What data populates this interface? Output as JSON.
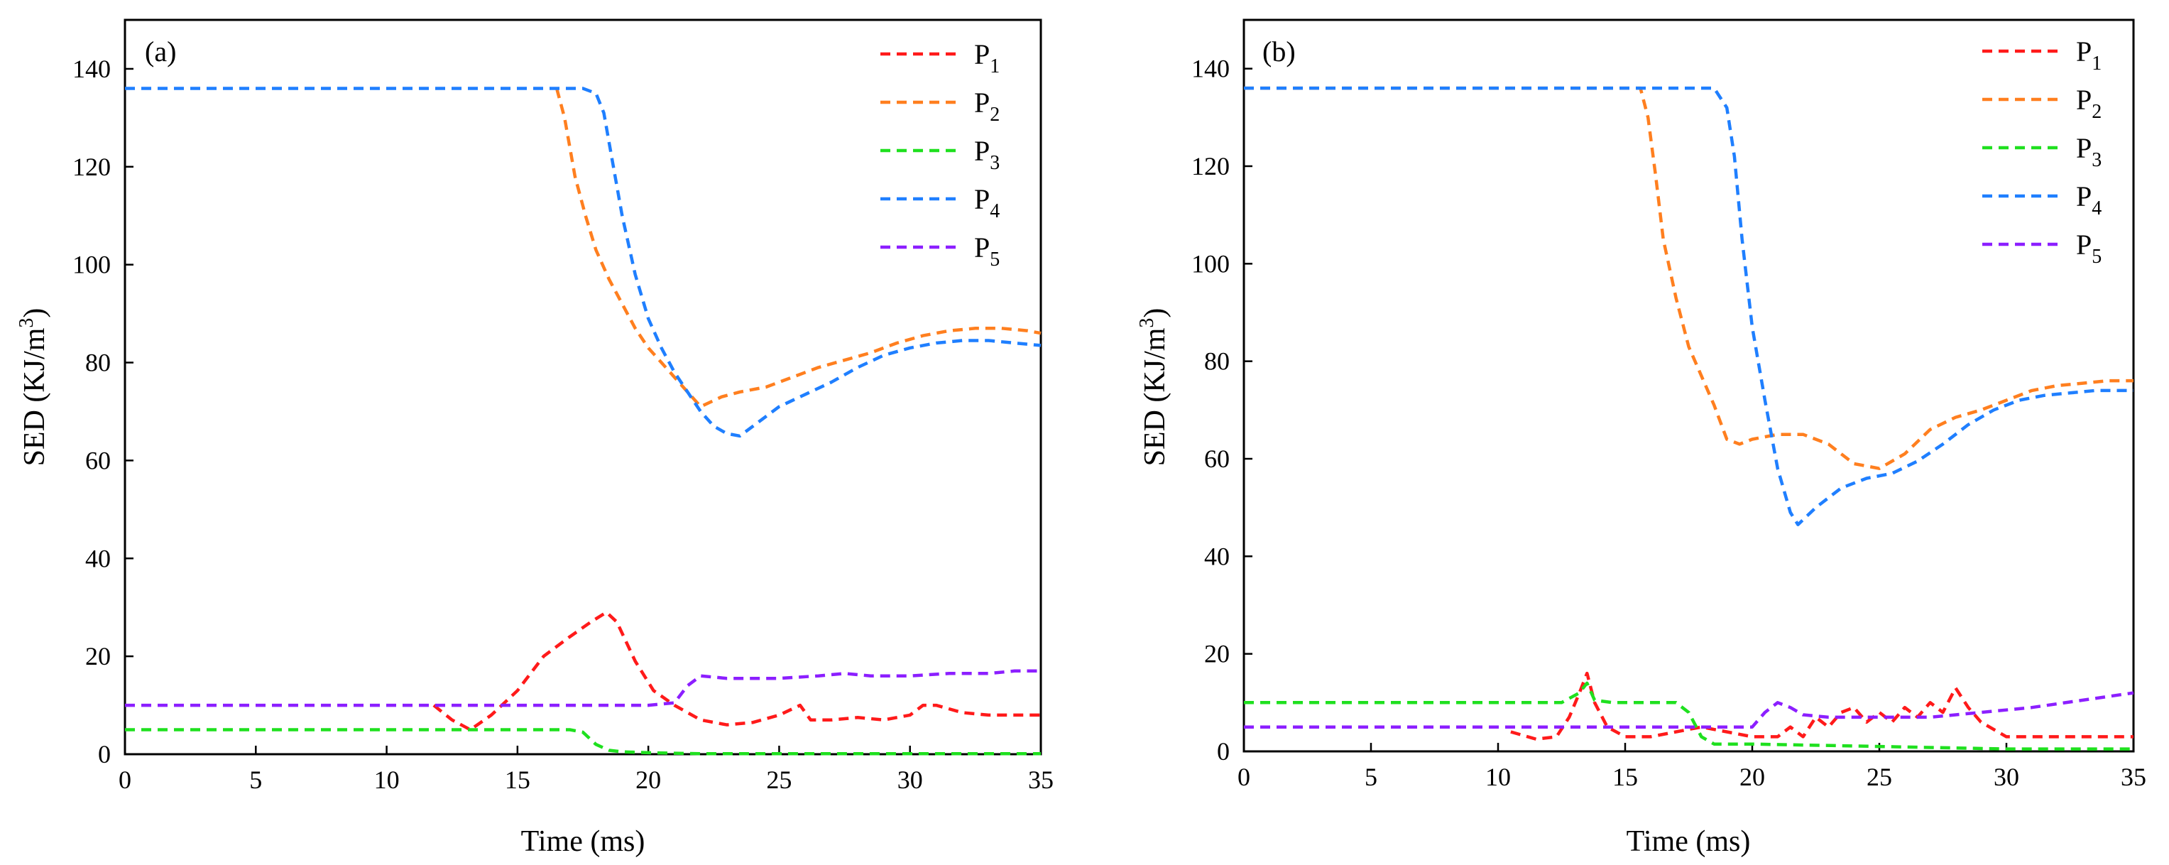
{
  "figure": {
    "panels_count": 2
  },
  "chart_data": [
    {
      "type": "line",
      "panel_label": "(a)",
      "xlabel": "Time (ms)",
      "ylabel": "SED (KJ/m",
      "ylabel_sup": "3",
      "ylabel_close": ")",
      "xlim": [
        0,
        35
      ],
      "ylim": [
        0,
        150
      ],
      "xticks": [
        0,
        5,
        10,
        15,
        20,
        25,
        30,
        35
      ],
      "yticks": [
        0,
        20,
        40,
        60,
        80,
        100,
        120,
        140
      ],
      "grid": false,
      "legend_position": "top-right",
      "line_style": "dashed",
      "series": [
        {
          "name": "P",
          "sub": "1",
          "color": "#ff1a1a",
          "x": [
            11.8,
            12.5,
            13.2,
            14.0,
            15.0,
            16.0,
            17.0,
            17.8,
            18.4,
            18.8,
            19.5,
            20.2,
            21.0,
            22.0,
            23.0,
            24.0,
            25.0,
            25.8,
            26.2,
            27.0,
            28.0,
            29.0,
            30.0,
            30.5,
            31.0,
            32.0,
            33.0,
            34.0,
            35.0
          ],
          "y": [
            10,
            7,
            5,
            8,
            13,
            20,
            24,
            27,
            29,
            27,
            19,
            13,
            10,
            7,
            6,
            6.5,
            8,
            10,
            7,
            7,
            7.5,
            7,
            8,
            10,
            10,
            8.5,
            8,
            8,
            8
          ]
        },
        {
          "name": "P",
          "sub": "2",
          "color": "#ff7f1f",
          "x": [
            16.5,
            16.8,
            17.2,
            17.6,
            18.0,
            18.5,
            19.0,
            19.5,
            20.0,
            20.5,
            21.0,
            21.5,
            22.0,
            22.8,
            23.5,
            24.5,
            25.5,
            26.5,
            27.5,
            28.5,
            29.5,
            30.5,
            31.5,
            32.5,
            33.5,
            34.5,
            35.0
          ],
          "y": [
            136,
            130,
            118,
            110,
            103,
            97,
            92,
            87,
            83,
            80,
            77,
            74,
            71,
            73,
            74,
            75,
            77,
            79,
            80.5,
            82,
            84,
            85.5,
            86.5,
            87,
            87,
            86.5,
            86
          ]
        },
        {
          "name": "P",
          "sub": "3",
          "color": "#1fe01f",
          "x": [
            0,
            5,
            10,
            15,
            17.0,
            17.5,
            18.0,
            18.5,
            19.0,
            20.0,
            21.0,
            22.0,
            25.0,
            30.0,
            35.0
          ],
          "y": [
            5,
            5,
            5,
            5,
            5,
            4.5,
            2,
            0.8,
            0.5,
            0.3,
            0.2,
            0.1,
            0.1,
            0.1,
            0.1
          ]
        },
        {
          "name": "P",
          "sub": "4",
          "color": "#1f7fff",
          "x": [
            0,
            5,
            10,
            15,
            17.5,
            18.0,
            18.3,
            18.6,
            19.0,
            19.5,
            20.0,
            20.5,
            21.0,
            21.5,
            22.0,
            22.5,
            23.0,
            23.5,
            24.0,
            25.0,
            26.0,
            27.0,
            28.0,
            29.0,
            30.0,
            31.0,
            32.0,
            33.0,
            34.0,
            35.0
          ],
          "y": [
            136,
            136,
            136,
            136,
            136,
            135,
            131,
            122,
            110,
            98,
            89,
            83,
            78,
            74,
            70,
            67,
            65.5,
            65,
            67,
            71,
            73.5,
            76,
            79,
            81.5,
            83,
            84,
            84.5,
            84.5,
            84,
            83.5
          ]
        },
        {
          "name": "P",
          "sub": "5",
          "color": "#8c1fff",
          "x": [
            0,
            5,
            10,
            15,
            20,
            21.0,
            21.5,
            22.0,
            23.0,
            25.0,
            26.5,
            27.5,
            28.5,
            30.0,
            31.5,
            33.0,
            34.0,
            35.0
          ],
          "y": [
            10,
            10,
            10,
            10,
            10,
            10.5,
            14,
            16,
            15.5,
            15.5,
            16,
            16.5,
            16,
            16,
            16.5,
            16.5,
            17,
            17
          ]
        }
      ]
    },
    {
      "type": "line",
      "panel_label": "(b)",
      "xlabel": "Time (ms)",
      "ylabel": "SED (KJ/m",
      "ylabel_sup": "3",
      "ylabel_close": ")",
      "xlim": [
        0,
        35
      ],
      "ylim": [
        0,
        150
      ],
      "xticks": [
        0,
        5,
        10,
        15,
        20,
        25,
        30,
        35
      ],
      "yticks": [
        0,
        20,
        40,
        60,
        80,
        100,
        120,
        140
      ],
      "grid": false,
      "legend_position": "top-right",
      "line_style": "dashed",
      "series": [
        {
          "name": "P",
          "sub": "1",
          "color": "#ff1a1a",
          "x": [
            10.5,
            11.5,
            12.3,
            12.8,
            13.2,
            13.5,
            13.8,
            14.3,
            15.0,
            16.0,
            17.0,
            18.0,
            19.0,
            20.0,
            21.0,
            21.5,
            22.0,
            22.5,
            23.0,
            23.5,
            24.0,
            24.5,
            25.0,
            25.5,
            26.0,
            26.5,
            27.0,
            27.5,
            28.0,
            28.5,
            29.0,
            30.0,
            31.0,
            33.0,
            35.0
          ],
          "y": [
            4,
            2.5,
            3,
            7,
            12,
            16,
            10,
            5,
            3,
            3,
            4,
            5,
            4,
            3,
            3,
            5,
            3,
            7,
            5,
            8,
            9,
            6,
            8,
            6,
            9,
            7,
            10,
            8,
            13,
            9,
            6,
            3,
            3,
            3,
            3
          ]
        },
        {
          "name": "P",
          "sub": "2",
          "color": "#ff7f1f",
          "x": [
            0,
            5,
            10,
            15,
            15.6,
            15.9,
            16.2,
            16.5,
            17.0,
            17.5,
            18.0,
            18.5,
            19.0,
            19.5,
            20.0,
            21.0,
            22.0,
            23.0,
            24.0,
            25.0,
            26.0,
            27.0,
            28.0,
            29.0,
            30.0,
            31.0,
            32.0,
            33.0,
            34.0,
            35.0
          ],
          "y": [
            136,
            136,
            136,
            136,
            136,
            130,
            118,
            105,
            93,
            83,
            77,
            71,
            64,
            63,
            64,
            65,
            65,
            63,
            59,
            58,
            61,
            66,
            68.5,
            70,
            72,
            74,
            75,
            75.5,
            76,
            76
          ]
        },
        {
          "name": "P",
          "sub": "3",
          "color": "#1fe01f",
          "x": [
            0,
            5,
            10,
            12.5,
            13.2,
            13.5,
            13.8,
            14.5,
            15.0,
            17.0,
            17.5,
            18.0,
            18.5,
            19.0,
            20.0,
            25.0,
            30.0,
            35.0
          ],
          "y": [
            10,
            10,
            10,
            10,
            12,
            14,
            10.5,
            10,
            10,
            10,
            8,
            3,
            1.5,
            1.5,
            1.5,
            1,
            0.5,
            0.5
          ]
        },
        {
          "name": "P",
          "sub": "4",
          "color": "#1f7fff",
          "x": [
            0,
            5,
            10,
            15,
            17.5,
            18.5,
            19.0,
            19.3,
            19.6,
            20.0,
            20.5,
            21.0,
            21.5,
            21.8,
            22.5,
            23.5,
            24.5,
            25.5,
            26.5,
            27.5,
            28.5,
            29.5,
            30.5,
            31.5,
            32.5,
            33.5,
            34.5,
            35.0
          ],
          "y": [
            136,
            136,
            136,
            136,
            136,
            136,
            132,
            122,
            105,
            87,
            72,
            58,
            49,
            46.5,
            50,
            54,
            56,
            57,
            59.5,
            63,
            67,
            70,
            72,
            73,
            73.5,
            74,
            74,
            74
          ]
        },
        {
          "name": "P",
          "sub": "5",
          "color": "#8c1fff",
          "x": [
            0,
            5,
            10,
            15,
            20,
            20.5,
            21.0,
            21.5,
            22.0,
            23.0,
            25.0,
            27.0,
            29.0,
            31.0,
            33.0,
            35.0
          ],
          "y": [
            5,
            5,
            5,
            5,
            5,
            8,
            10,
            9,
            7.5,
            7,
            7,
            7,
            8,
            9,
            10.5,
            12
          ]
        }
      ]
    }
  ]
}
